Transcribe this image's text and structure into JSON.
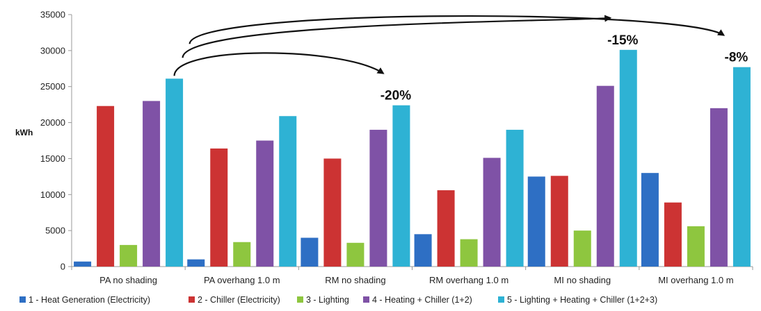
{
  "chart_data": {
    "type": "bar",
    "title": "",
    "xlabel": "",
    "ylabel": "kWh",
    "ylim": [
      0,
      35000
    ],
    "yticks": [
      0,
      5000,
      10000,
      15000,
      20000,
      25000,
      30000,
      35000
    ],
    "grid": false,
    "legend_position": "bottom",
    "categories": [
      "PA no shading",
      "PA overhang 1.0 m",
      "RM no shading",
      "RM overhang 1.0 m",
      "MI no shading",
      "MI overhang 1.0 m"
    ],
    "series": [
      {
        "name": "1 - Heat Generation (Electricity)",
        "color": "#2e6fc4",
        "values": [
          700,
          1000,
          4000,
          4500,
          12500,
          13000
        ]
      },
      {
        "name": "2 - Chiller (Electricity)",
        "color": "#cc3333",
        "values": [
          22300,
          16400,
          15000,
          10600,
          12600,
          8900
        ]
      },
      {
        "name": "3 - Lighting",
        "color": "#8ec63f",
        "values": [
          3000,
          3400,
          3300,
          3800,
          5000,
          5600
        ]
      },
      {
        "name": "4 - Heating + Chiller (1+2)",
        "color": "#7f52a6",
        "values": [
          23000,
          17500,
          19000,
          15100,
          25100,
          22000
        ]
      },
      {
        "name": "5 - Lighting + Heating + Chiller (1+2+3)",
        "color": "#2eb2d4",
        "values": [
          26100,
          20900,
          22400,
          19000,
          30100,
          27700
        ]
      }
    ],
    "annotations": [
      {
        "text": "-20%",
        "category": "RM no shading"
      },
      {
        "text": "-15%",
        "category": "MI no shading"
      },
      {
        "text": "-8%",
        "category": "MI overhang 1.0 m"
      }
    ]
  }
}
